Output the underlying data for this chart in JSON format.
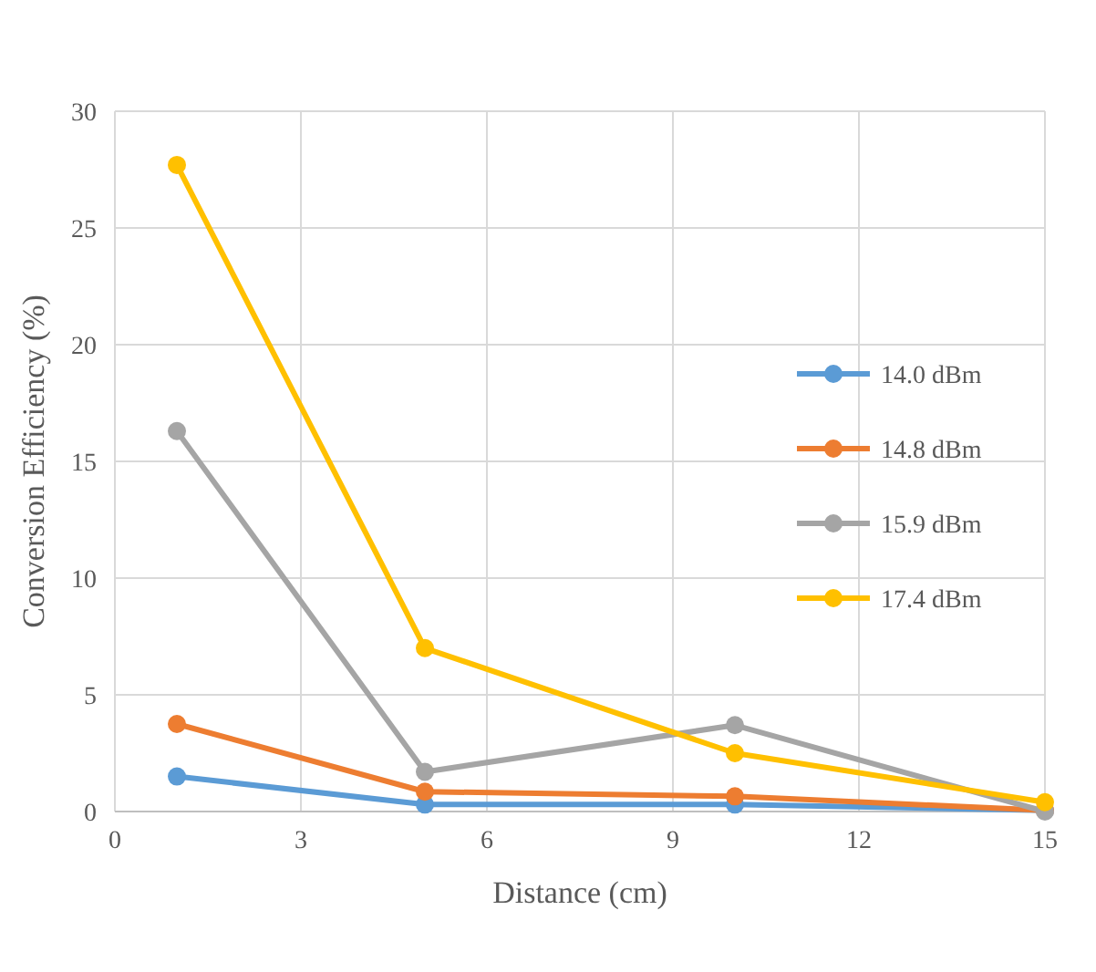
{
  "chart_data": {
    "type": "line",
    "xlabel": "Distance (cm)",
    "ylabel": "Conversion Efficiency (%)",
    "x": [
      1,
      5,
      10,
      15
    ],
    "series": [
      {
        "name": "14.0 dBm",
        "color": "#5b9bd5",
        "values": [
          1.5,
          0.3,
          0.3,
          0.05
        ]
      },
      {
        "name": "14.8 dBm",
        "color": "#ed7d31",
        "values": [
          3.75,
          0.85,
          0.65,
          0.05
        ]
      },
      {
        "name": "15.9 dBm",
        "color": "#a5a5a5",
        "values": [
          16.3,
          1.7,
          3.7,
          0
        ]
      },
      {
        "name": "17.4 dBm",
        "color": "#ffc000",
        "values": [
          27.7,
          7.0,
          2.5,
          0.4
        ]
      }
    ],
    "xlim": [
      0,
      15
    ],
    "xticks": [
      0,
      3,
      6,
      9,
      12,
      15
    ],
    "ylim": [
      0,
      30
    ],
    "yticks": [
      0,
      5,
      10,
      15,
      20,
      25,
      30
    ],
    "grid": true,
    "legend": "right",
    "marker": "circle",
    "line_style": "solid"
  }
}
